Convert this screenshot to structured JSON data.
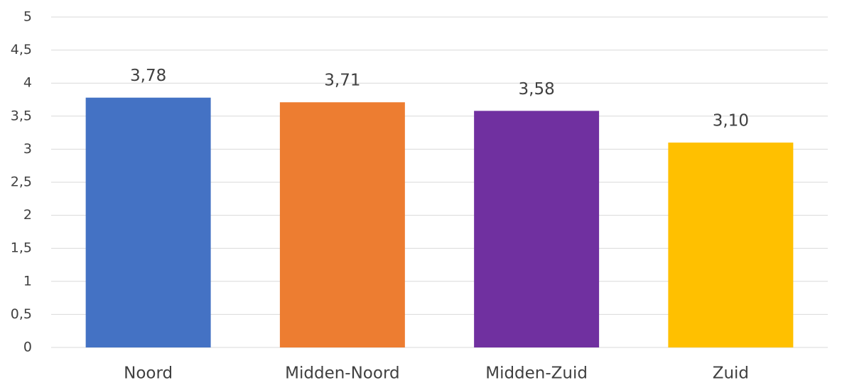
{
  "chart_data": {
    "type": "bar",
    "categories": [
      "Noord",
      "Midden-Noord",
      "Midden-Zuid",
      "Zuid"
    ],
    "values": [
      3.78,
      3.71,
      3.58,
      3.1
    ],
    "value_labels": [
      "3,78",
      "3,71",
      "3,58",
      "3,10"
    ],
    "colors": [
      "#4472c4",
      "#ed7d31",
      "#7030a0",
      "#ffc000"
    ],
    "ylim": [
      0,
      5
    ],
    "yticks": [
      0,
      {
        "value": 0.5,
        "label": "0,5"
      },
      1,
      {
        "value": 1.5,
        "label": "1,5"
      },
      2,
      {
        "value": 2.5,
        "label": "2,5"
      },
      3,
      {
        "value": 3.5,
        "label": "3,5"
      },
      4,
      {
        "value": 4.5,
        "label": "4,5"
      },
      5
    ],
    "grid": true
  }
}
